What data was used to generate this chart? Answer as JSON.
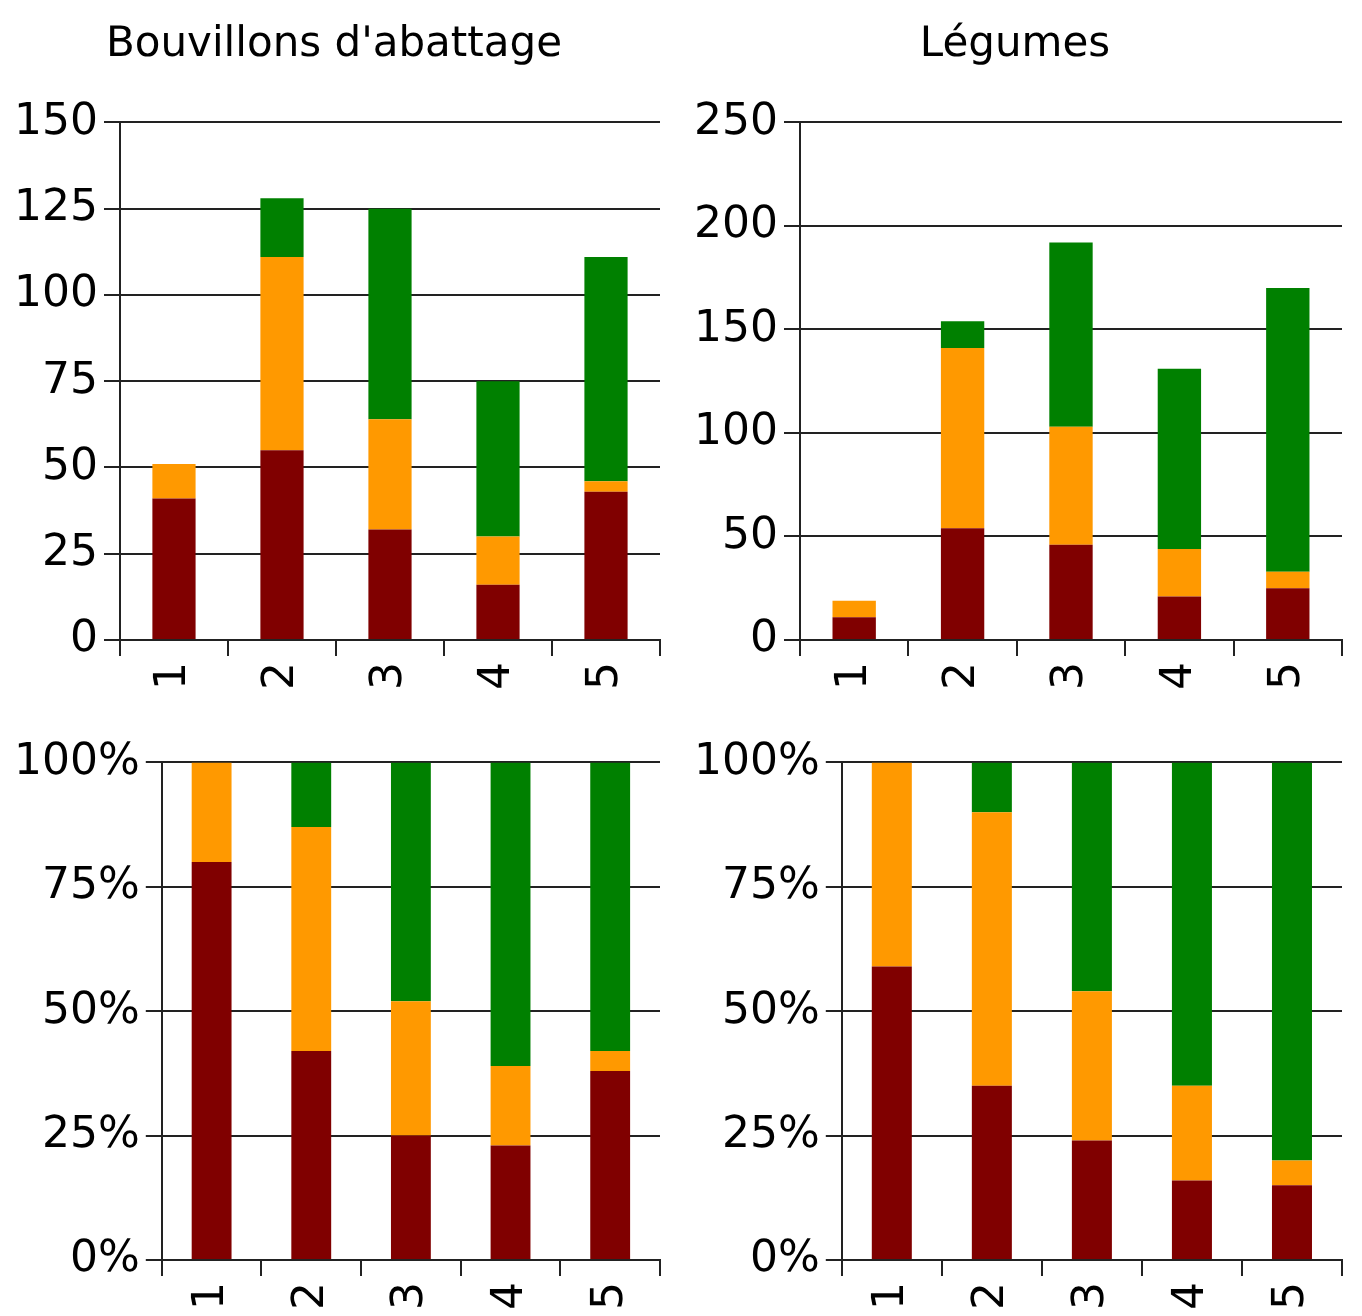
{
  "chart_data": [
    {
      "type": "bar",
      "title": "Bouvillons d'abattage",
      "categories": [
        "1",
        "2",
        "3",
        "4",
        "5"
      ],
      "stacked": true,
      "grid": "y",
      "ylim": [
        0,
        150
      ],
      "yticks": [
        0,
        25,
        50,
        75,
        100,
        125,
        150
      ],
      "series": [
        {
          "color": "#800000",
          "values": [
            41,
            55,
            32,
            16,
            43
          ]
        },
        {
          "color": "#ff9900",
          "values": [
            10,
            56,
            32,
            14,
            3
          ]
        },
        {
          "color": "#008000",
          "values": [
            0,
            17,
            61,
            45,
            65
          ]
        }
      ]
    },
    {
      "type": "bar",
      "title": "Légumes",
      "categories": [
        "1",
        "2",
        "3",
        "4",
        "5"
      ],
      "stacked": true,
      "grid": "y",
      "ylim": [
        0,
        250
      ],
      "yticks": [
        0,
        50,
        100,
        150,
        200,
        250
      ],
      "series": [
        {
          "color": "#800000",
          "values": [
            11,
            54,
            46,
            21,
            25
          ]
        },
        {
          "color": "#ff9900",
          "values": [
            8,
            87,
            57,
            23,
            8
          ]
        },
        {
          "color": "#008000",
          "values": [
            0,
            13,
            89,
            87,
            137
          ]
        }
      ]
    },
    {
      "type": "bar",
      "categories": [
        "1",
        "2",
        "3",
        "4",
        "5"
      ],
      "stacked": true,
      "grid": "y",
      "ylim": [
        0,
        100
      ],
      "yticks": [
        {
          "value": 0,
          "label": "0%"
        },
        {
          "value": 25,
          "label": "25%"
        },
        {
          "value": 50,
          "label": "50%"
        },
        {
          "value": 75,
          "label": "75%"
        },
        {
          "value": 100,
          "label": "100%"
        }
      ],
      "series": [
        {
          "color": "#800000",
          "values": [
            80,
            42,
            25,
            23,
            38
          ]
        },
        {
          "color": "#ff9900",
          "values": [
            20,
            45,
            27,
            16,
            4
          ]
        },
        {
          "color": "#008000",
          "values": [
            0,
            13,
            48,
            61,
            58
          ]
        }
      ]
    },
    {
      "type": "bar",
      "categories": [
        "1",
        "2",
        "3",
        "4",
        "5"
      ],
      "stacked": true,
      "grid": "y",
      "ylim": [
        0,
        100
      ],
      "yticks": [
        {
          "value": 0,
          "label": "0%"
        },
        {
          "value": 25,
          "label": "25%"
        },
        {
          "value": 50,
          "label": "50%"
        },
        {
          "value": 75,
          "label": "75%"
        },
        {
          "value": 100,
          "label": "100%"
        }
      ],
      "series": [
        {
          "color": "#800000",
          "values": [
            59,
            35,
            24,
            16,
            15
          ]
        },
        {
          "color": "#ff9900",
          "values": [
            41,
            55,
            30,
            19,
            5
          ]
        },
        {
          "color": "#008000",
          "values": [
            0,
            10,
            46,
            65,
            80
          ]
        }
      ]
    }
  ]
}
